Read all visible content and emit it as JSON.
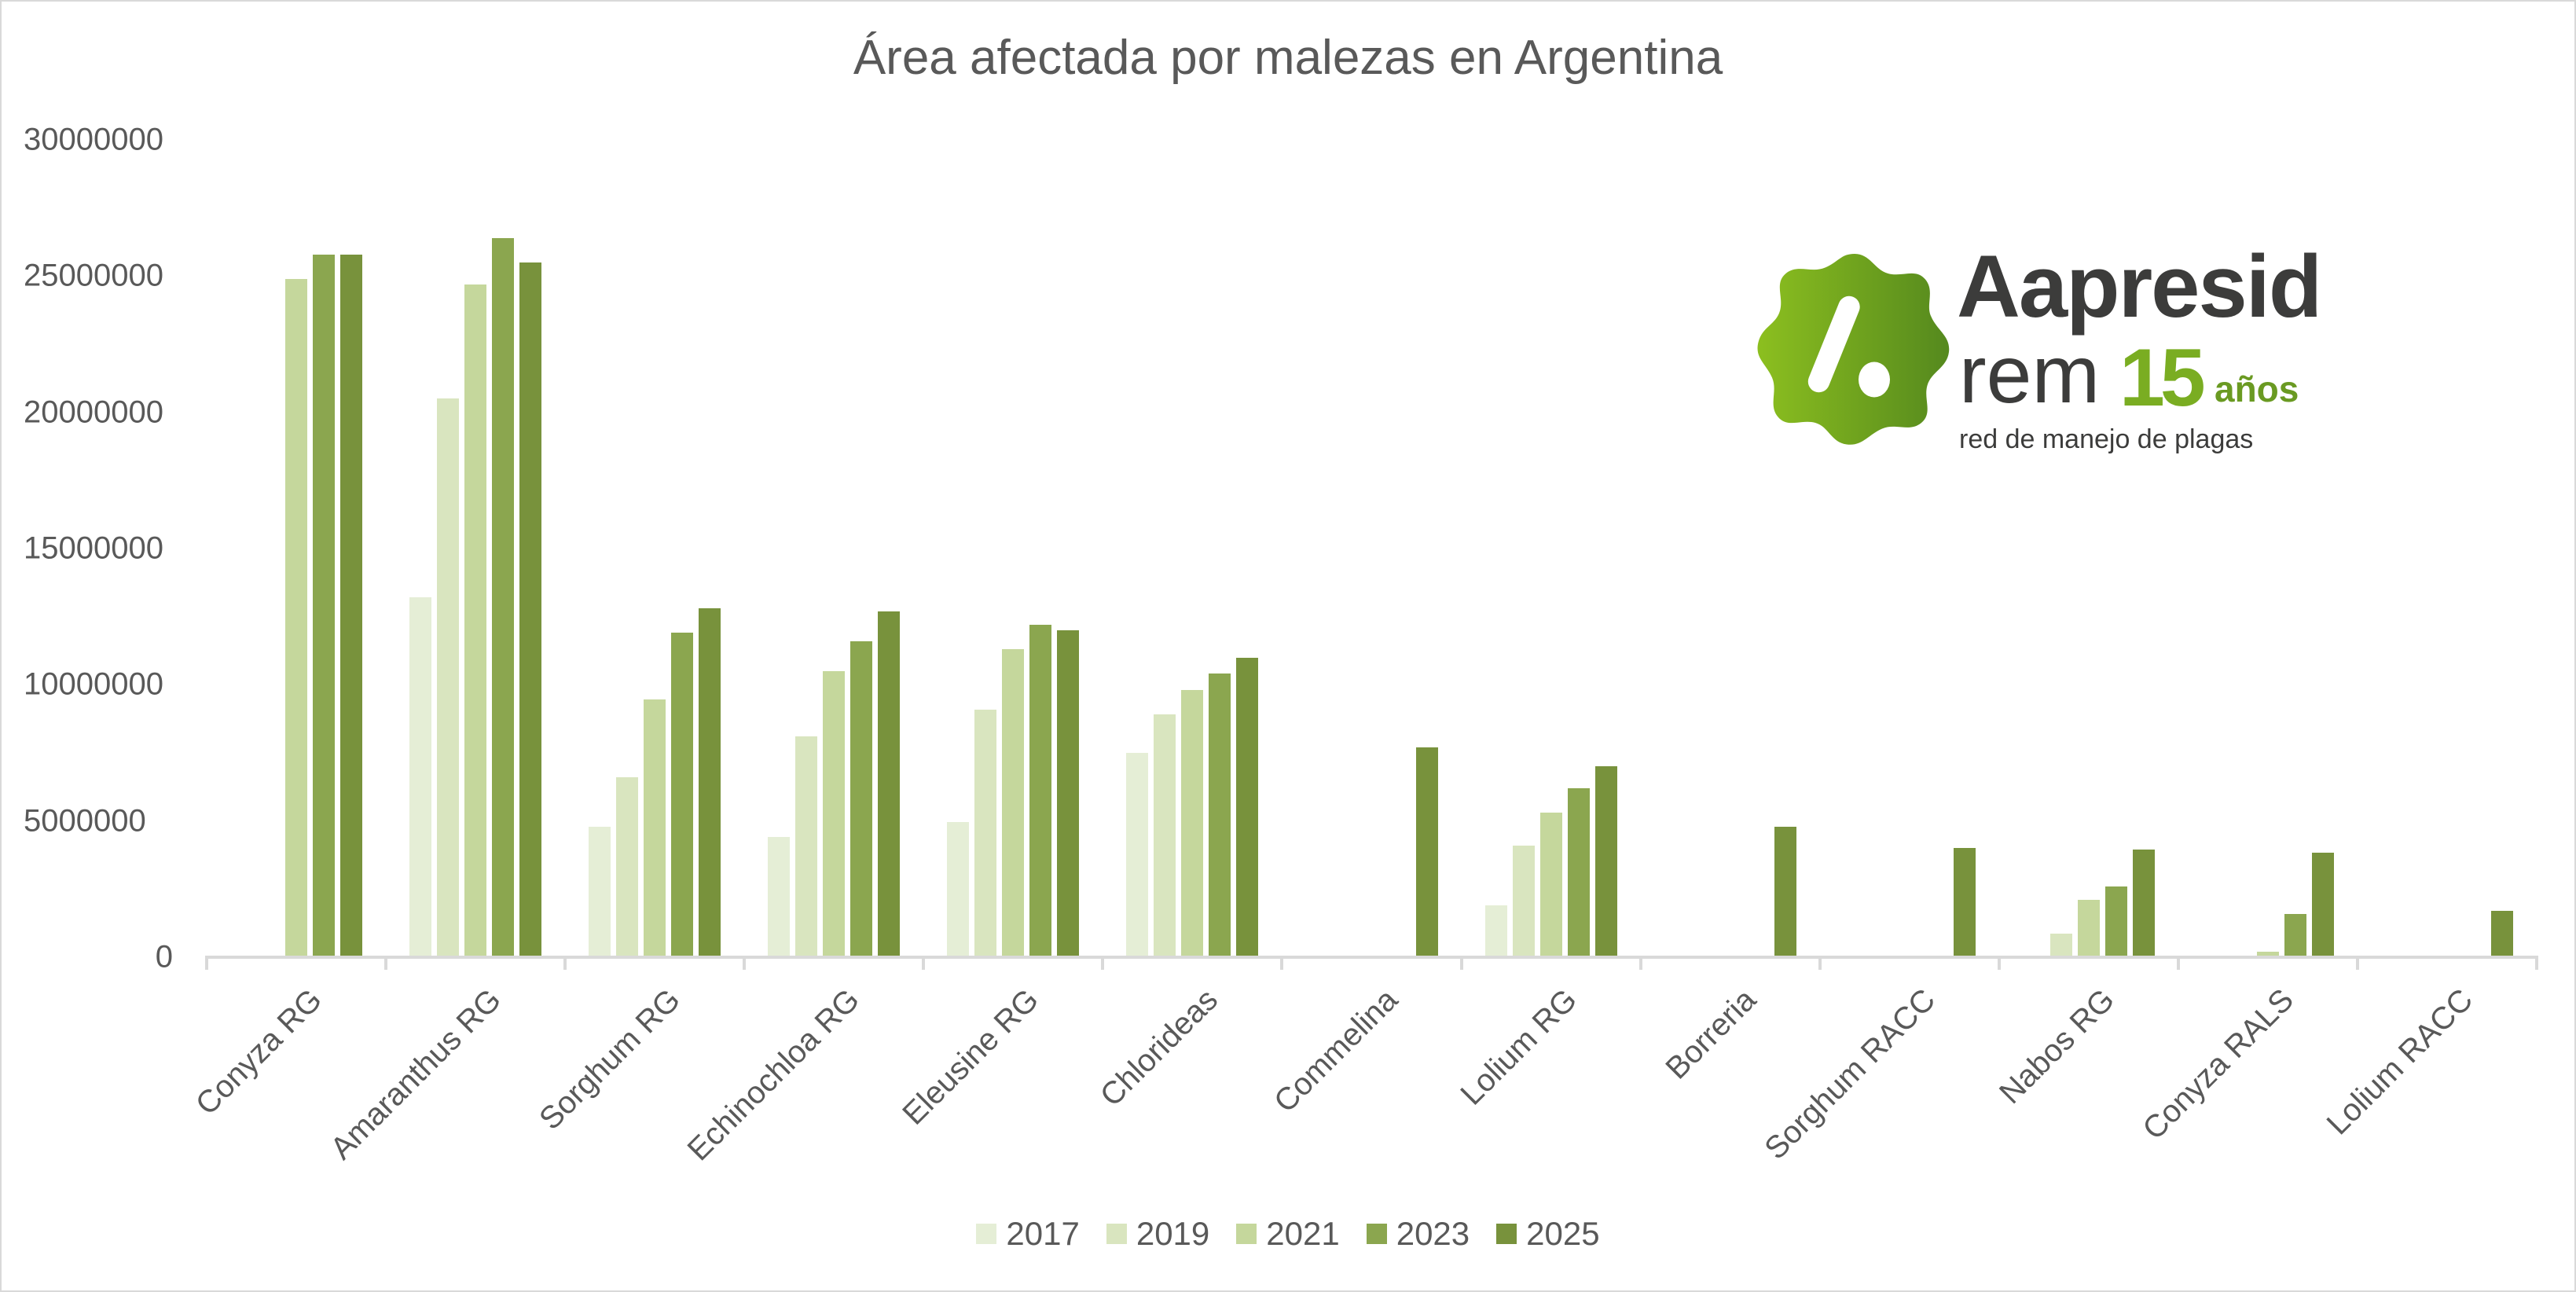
{
  "chart_data": {
    "type": "bar",
    "title": "Área afectada por malezas en Argentina",
    "xlabel": "",
    "ylabel": "",
    "ylim": [
      0,
      30000000
    ],
    "yticks": [
      "0",
      "5000000",
      "10000000",
      "15000000",
      "20000000",
      "25000000",
      "30000000"
    ],
    "grid": false,
    "legend_position": "bottom",
    "categories": [
      "Conyza RG",
      "Amaranthus RG",
      "Sorghum RG",
      "Echinochloa RG",
      "Eleusine RG",
      "Chlorideas",
      "Commelina",
      "Lolium RG",
      "Borreria",
      "Sorghum RACC",
      "Nabos RG",
      "Conyza RALS",
      "Lolium RACC"
    ],
    "series": [
      {
        "name": "2017",
        "color": "#e5eed6",
        "values": [
          0,
          13200000,
          4800000,
          4400000,
          4950000,
          7500000,
          0,
          1900000,
          0,
          0,
          0,
          0,
          0
        ]
      },
      {
        "name": "2019",
        "color": "#d9e5bf",
        "values": [
          0,
          20500000,
          6600000,
          8100000,
          9100000,
          8900000,
          0,
          4100000,
          0,
          0,
          870000,
          0,
          0
        ]
      },
      {
        "name": "2021",
        "color": "#c5d79c",
        "values": [
          24900000,
          24700000,
          9450000,
          10500000,
          11300000,
          9800000,
          0,
          5300000,
          0,
          0,
          2100000,
          200000,
          0
        ]
      },
      {
        "name": "2023",
        "color": "#8ba64f",
        "values": [
          25800000,
          26400000,
          11900000,
          11600000,
          12200000,
          10400000,
          0,
          6200000,
          0,
          0,
          2600000,
          1600000,
          0
        ]
      },
      {
        "name": "2025",
        "color": "#78923c",
        "values": [
          25800000,
          25500000,
          12800000,
          12700000,
          12000000,
          11000000,
          7700000,
          7000000,
          4800000,
          4000000,
          3950000,
          3850000,
          1700000
        ]
      }
    ]
  },
  "logo": {
    "brand": "Aapresid",
    "rem": "rem",
    "fifteen": "15",
    "anos": "años",
    "tagline": "red de manejo de plagas"
  }
}
